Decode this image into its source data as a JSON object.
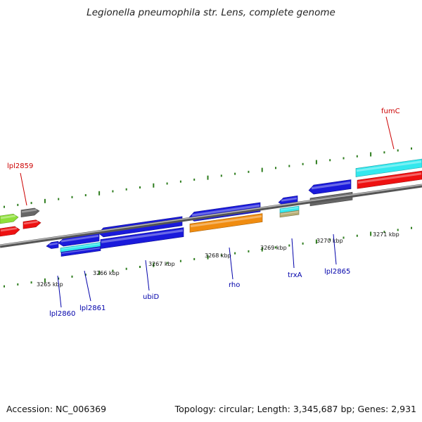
{
  "title": "Legionella pneumophila str. Lens, complete genome",
  "footer": {
    "accession": "Accession: NC_006369",
    "stats": "Topology: circular; Length: 3,345,687 bp; Genes: 2,931"
  },
  "colors": {
    "backbone": "#888888",
    "tick": "#2e7d1e",
    "label_forward": "#cc0000",
    "label_reverse": "#0000aa",
    "blue": "#1a1adb",
    "cyan": "#33e8ee",
    "red": "#ee1111",
    "grey": "#666666",
    "green": "#8ee03a",
    "orange": "#f08c10",
    "tan": "#b7ad73"
  },
  "scale_labels": [
    "3265 kbp",
    "3266 kbp",
    "3267 kbp",
    "3268 kbp",
    "3269 kbp",
    "3270 kbp",
    "3271 kbp"
  ],
  "gene_labels": {
    "forward": [
      "lpl2859",
      "fumC"
    ],
    "reverse": [
      "lpl2860",
      "lpl2861",
      "ubiD",
      "rho",
      "trxA",
      "lpl2865"
    ]
  }
}
